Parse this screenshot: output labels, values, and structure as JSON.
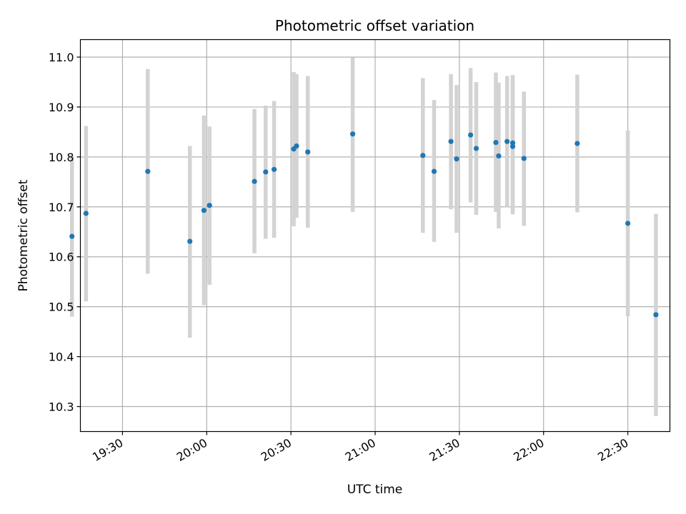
{
  "chart_data": {
    "type": "scatter",
    "title": "Photometric offset variation",
    "xlabel": "UTC time",
    "ylabel": "Photometric offset",
    "x_is_time": true,
    "xlim": [
      "19:15",
      "22:45"
    ],
    "ylim": [
      10.25,
      11.035
    ],
    "x_ticks": [
      "19:30",
      "20:00",
      "20:30",
      "21:00",
      "21:30",
      "22:00",
      "22:30"
    ],
    "y_ticks": [
      10.3,
      10.4,
      10.5,
      10.6,
      10.7,
      10.8,
      10.9,
      11.0
    ],
    "y_tick_labels": [
      "10.3",
      "10.4",
      "10.5",
      "10.6",
      "10.7",
      "10.8",
      "10.9",
      "11.0"
    ],
    "grid": true,
    "colors": {
      "point": "#1f77b4",
      "errorbar": "#d3d3d3",
      "grid": "#b0b0b0",
      "axes": "#000000"
    },
    "points": [
      {
        "x": "19:12",
        "y": 10.641,
        "ylo": 10.48,
        "yhi": 10.802
      },
      {
        "x": "19:17",
        "y": 10.687,
        "ylo": 10.511,
        "yhi": 10.862
      },
      {
        "x": "19:39",
        "y": 10.771,
        "ylo": 10.566,
        "yhi": 10.976
      },
      {
        "x": "19:54",
        "y": 10.631,
        "ylo": 10.438,
        "yhi": 10.822
      },
      {
        "x": "19:59",
        "y": 10.693,
        "ylo": 10.503,
        "yhi": 10.883
      },
      {
        "x": "20:01",
        "y": 10.703,
        "ylo": 10.544,
        "yhi": 10.861
      },
      {
        "x": "20:17",
        "y": 10.751,
        "ylo": 10.607,
        "yhi": 10.896
      },
      {
        "x": "20:21",
        "y": 10.77,
        "ylo": 10.636,
        "yhi": 10.903
      },
      {
        "x": "20:24",
        "y": 10.775,
        "ylo": 10.638,
        "yhi": 10.912
      },
      {
        "x": "20:31",
        "y": 10.816,
        "ylo": 10.661,
        "yhi": 10.97
      },
      {
        "x": "20:32",
        "y": 10.822,
        "ylo": 10.678,
        "yhi": 10.966
      },
      {
        "x": "20:36",
        "y": 10.81,
        "ylo": 10.658,
        "yhi": 10.962
      },
      {
        "x": "20:52",
        "y": 10.846,
        "ylo": 10.69,
        "yhi": 10.999
      },
      {
        "x": "21:17",
        "y": 10.803,
        "ylo": 10.648,
        "yhi": 10.958
      },
      {
        "x": "21:21",
        "y": 10.771,
        "ylo": 10.63,
        "yhi": 10.914
      },
      {
        "x": "21:27",
        "y": 10.831,
        "ylo": 10.695,
        "yhi": 10.966
      },
      {
        "x": "21:29",
        "y": 10.796,
        "ylo": 10.648,
        "yhi": 10.944
      },
      {
        "x": "21:34",
        "y": 10.844,
        "ylo": 10.709,
        "yhi": 10.978
      },
      {
        "x": "21:36",
        "y": 10.817,
        "ylo": 10.684,
        "yhi": 10.95
      },
      {
        "x": "21:43",
        "y": 10.829,
        "ylo": 10.69,
        "yhi": 10.969
      },
      {
        "x": "21:44",
        "y": 10.802,
        "ylo": 10.657,
        "yhi": 10.949
      },
      {
        "x": "21:47",
        "y": 10.831,
        "ylo": 10.7,
        "yhi": 10.962
      },
      {
        "x": "21:49",
        "y": 10.821,
        "ylo": 10.685,
        "yhi": 10.961
      },
      {
        "x": "21:49",
        "y": 10.828,
        "ylo": 10.691,
        "yhi": 10.964
      },
      {
        "x": "21:53",
        "y": 10.797,
        "ylo": 10.662,
        "yhi": 10.931
      },
      {
        "x": "22:12",
        "y": 10.827,
        "ylo": 10.689,
        "yhi": 10.965
      },
      {
        "x": "22:30",
        "y": 10.667,
        "ylo": 10.481,
        "yhi": 10.853
      },
      {
        "x": "22:40",
        "y": 10.484,
        "ylo": 10.281,
        "yhi": 10.686
      }
    ]
  }
}
